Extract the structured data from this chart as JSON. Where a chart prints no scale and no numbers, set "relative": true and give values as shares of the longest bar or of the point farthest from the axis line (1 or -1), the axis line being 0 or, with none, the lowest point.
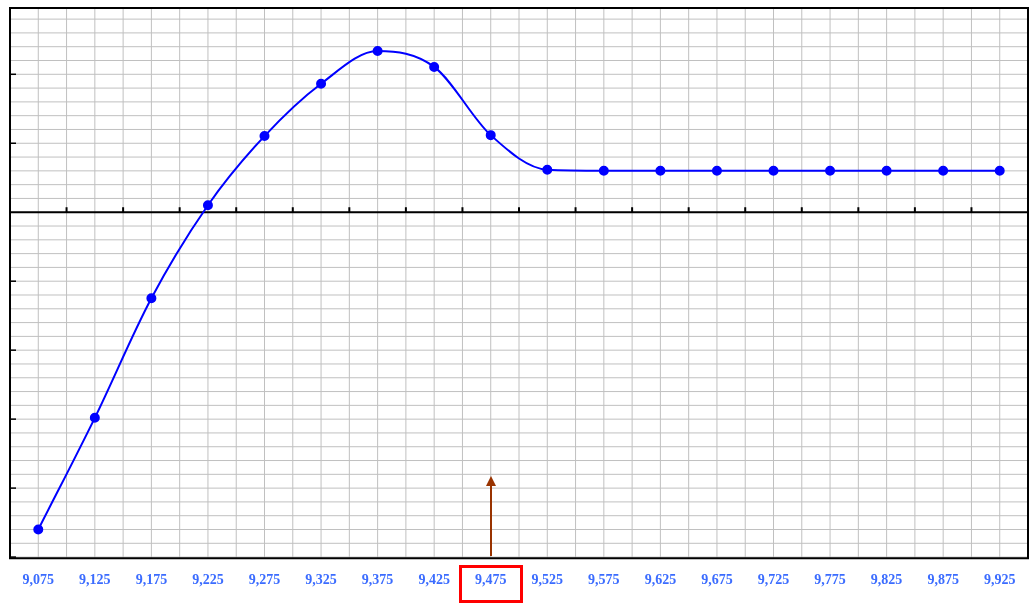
{
  "chart_data": {
    "type": "line",
    "relative": true,
    "grid": true,
    "marker": "circle",
    "categories": [
      "9,075",
      "9,125",
      "9,175",
      "9,225",
      "9,275",
      "9,325",
      "9,375",
      "9,425",
      "9,475",
      "9,525",
      "9,575",
      "9,625",
      "9,675",
      "9,725",
      "9,775",
      "9,825",
      "9,875",
      "9,925"
    ],
    "series": [
      {
        "color": "#0000ff",
        "values": [
          -1,
          -0.648,
          -0.271,
          0.022,
          0.24,
          0.405,
          0.508,
          0.458,
          0.243,
          0.134,
          0.131,
          0.131,
          0.131,
          0.131,
          0.131,
          0.131,
          0.131,
          0.131
        ]
      }
    ]
  }
}
